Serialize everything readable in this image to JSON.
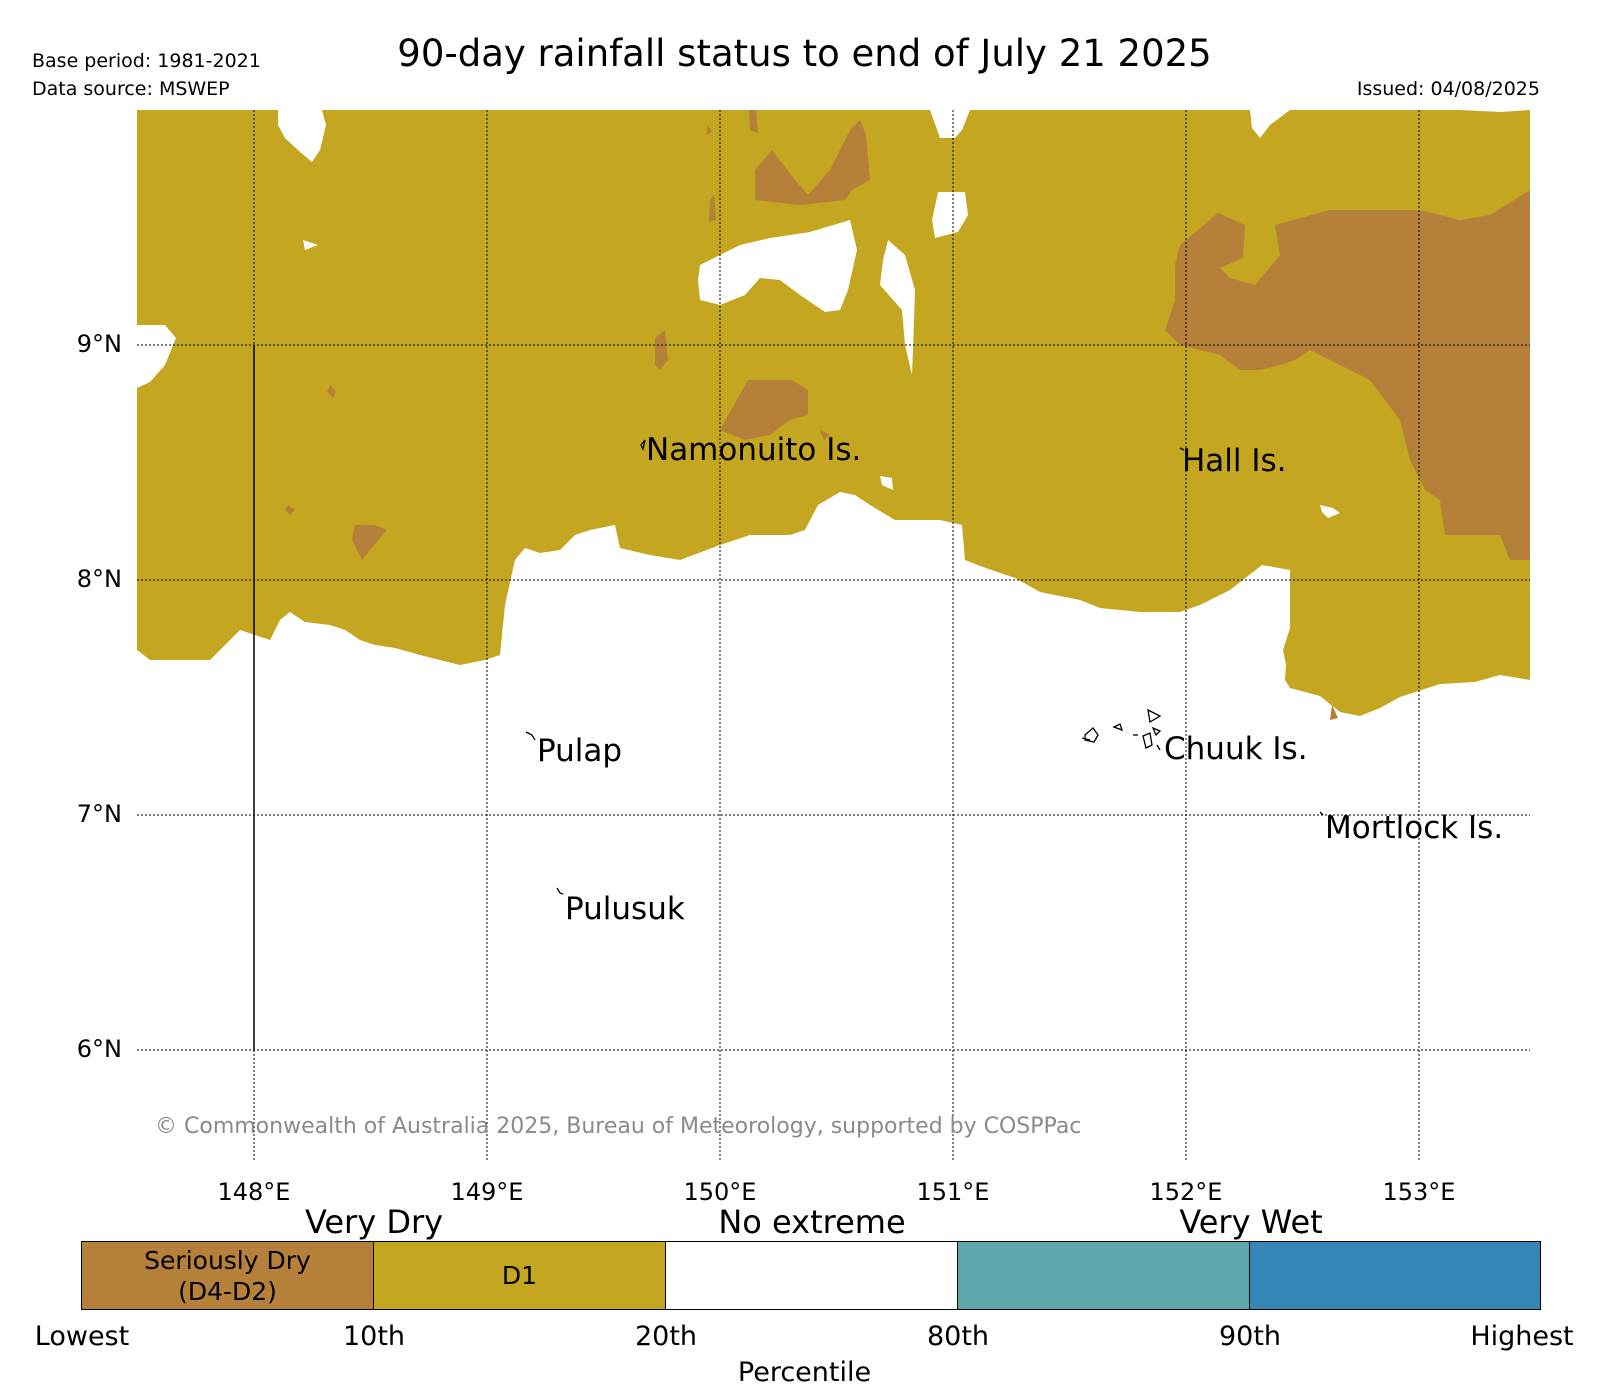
{
  "header": {
    "title": "90-day rainfall status to end of July 21 2025",
    "base_period": "Base period: 1981-2021",
    "data_source": "Data source: MSWEP",
    "issued": "Issued: 04/08/2025"
  },
  "map": {
    "latitude_labels": [
      "9°N",
      "8°N",
      "7°N",
      "6°N"
    ],
    "longitude_labels": [
      "148°E",
      "149°E",
      "150°E",
      "151°E",
      "152°E",
      "153°E"
    ],
    "places": [
      "Namonuito Is.",
      "Hall Is.",
      "Pulap",
      "Chuuk Is.",
      "Mortlock Is.",
      "Pulusuk"
    ],
    "copyright": "© Commonwealth of Australia 2025, Bureau of Meteorology, supported by COSPPac",
    "colors": {
      "seriously_dry": "#b5813a",
      "d1": "#c4a620",
      "no_extreme": "#ffffff",
      "wet": "#5ea8ad",
      "very_wet": "#3585b6"
    }
  },
  "legend": {
    "categories": [
      "Very Dry",
      "No extreme",
      "Very Wet"
    ],
    "boxes": [
      {
        "label_line1": "Seriously Dry",
        "label_line2": "(D4-D2)",
        "color": "#b5813a"
      },
      {
        "label_line1": "D1",
        "label_line2": "",
        "color": "#c4a620"
      },
      {
        "label_line1": "",
        "label_line2": "",
        "color": "#ffffff"
      },
      {
        "label_line1": "",
        "label_line2": "",
        "color": "#5ea8ad"
      },
      {
        "label_line1": "",
        "label_line2": "",
        "color": "#3585b6"
      }
    ],
    "ticks": [
      "Lowest",
      "10th",
      "20th",
      "80th",
      "90th",
      "Highest"
    ],
    "axis_title": "Percentile"
  }
}
